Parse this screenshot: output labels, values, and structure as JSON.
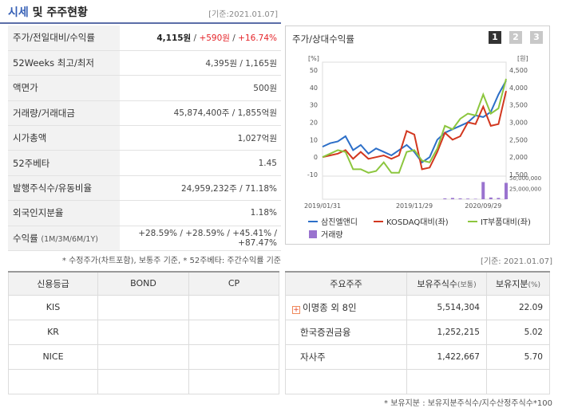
{
  "header": {
    "title_blue": "시세",
    "title_rest": " 및 주주현황",
    "base_date": "[기준:2021.01.07]"
  },
  "market": {
    "rows": [
      {
        "key": "주가/전일대비/수익률",
        "price": "4,115원",
        "sep1": " / ",
        "change": "+590원",
        "sep2": " / ",
        "rate": "+16.74%"
      },
      {
        "key": "52Weeks 최고/최저",
        "value": "4,395원 / 1,165원"
      },
      {
        "key": "액면가",
        "value": "500원"
      },
      {
        "key": "거래량/거래대금",
        "value": "45,874,400주 / 1,855억원"
      },
      {
        "key": "시가총액",
        "value": "1,027억원"
      },
      {
        "key": "52주베타",
        "value": "1.45"
      },
      {
        "key": "발행주식수/유동비율",
        "value": "24,959,232주 / 71.18%"
      },
      {
        "key": "외국인지분율",
        "value": "1.18%"
      },
      {
        "key": "수익률",
        "key_sub": "(1M/3M/6M/1Y)",
        "value": "+28.59% / +28.59% / +45.41% / +87.47%"
      }
    ],
    "note": "* 수정주가(차트포함), 보통주 기준, * 52주베타: 주간수익률 기준"
  },
  "chart_panel": {
    "title": "주가/상대수익률",
    "pages": [
      "1",
      "2",
      "3"
    ]
  },
  "chart_data": {
    "type": "line",
    "left_axis_unit": "[%]",
    "right_axis_unit": "[원]",
    "left_ticks": [
      "50",
      "40",
      "30",
      "20",
      "10",
      "0",
      "-10"
    ],
    "right_ticks": [
      "4,500",
      "4,000",
      "3,500",
      "3,000",
      "2,500",
      "2,000",
      "1,500"
    ],
    "volume_ticks": [
      "50,000,000",
      "25,000,000"
    ],
    "x_ticks": [
      "2019/01/31",
      "2019/11/29",
      "2020/09/29"
    ],
    "left_range": [
      -10,
      50
    ],
    "right_range": [
      1500,
      4500
    ],
    "volume_range": [
      0,
      50000000
    ],
    "legend": [
      "삼진엘앤디",
      "KOSDAQ대비(좌)",
      "IT부품대비(좌)",
      "거래량"
    ],
    "colors": {
      "price": "#2d6fc8",
      "kosdaq": "#d2371f",
      "it": "#8cc63e",
      "volume": "#9a73cf"
    },
    "price_series": [
      2300,
      2400,
      2450,
      2600,
      2200,
      2350,
      2100,
      2250,
      2150,
      2050,
      2200,
      2350,
      2150,
      1850,
      2000,
      2500,
      2700,
      2800,
      2900,
      3000,
      3200,
      3150,
      3300,
      3800,
      4200
    ],
    "kosdaq_series": [
      0,
      1,
      2,
      4,
      -1,
      3,
      -1,
      0,
      1,
      -1,
      1,
      15,
      13,
      -7,
      -6,
      3,
      14,
      10,
      12,
      20,
      19,
      29,
      18,
      19,
      38
    ],
    "it_series": [
      0,
      2,
      4,
      3,
      -7,
      -7,
      -9,
      -8,
      -3,
      -9,
      -9,
      3,
      4,
      -2,
      -3,
      5,
      18,
      16,
      22,
      25,
      24,
      36,
      25,
      28,
      45
    ],
    "volume_series": [
      0,
      0,
      0,
      0,
      0,
      0,
      0,
      0,
      0,
      0,
      0,
      0,
      0,
      0,
      0,
      0,
      2000000,
      3000000,
      2000000,
      1500000,
      1000000,
      40000000,
      4000000,
      3000000,
      38000000
    ]
  },
  "base_date_right": "[기준: 2021.01.07]",
  "credit": {
    "headers": [
      "신용등급",
      "BOND",
      "CP"
    ],
    "rows": [
      [
        "KIS",
        "",
        ""
      ],
      [
        "KR",
        "",
        ""
      ],
      [
        "NICE",
        "",
        ""
      ],
      [
        "",
        "",
        ""
      ]
    ]
  },
  "holders": {
    "headers": [
      "주요주주",
      "보유주식수",
      "(보통)",
      "보유지분",
      "(%)"
    ],
    "rows": [
      {
        "name": "이명종 외 8인",
        "expand": "+",
        "shares": "5,514,304",
        "ratio": "22.09"
      },
      {
        "name": "한국증권금융",
        "shares": "1,252,215",
        "ratio": "5.02"
      },
      {
        "name": "자사주",
        "shares": "1,422,667",
        "ratio": "5.70"
      },
      {
        "name": "",
        "shares": "",
        "ratio": ""
      }
    ]
  },
  "bottom_note": "* 보유지분 : 보유지분주식수/지수산정주식수*100"
}
